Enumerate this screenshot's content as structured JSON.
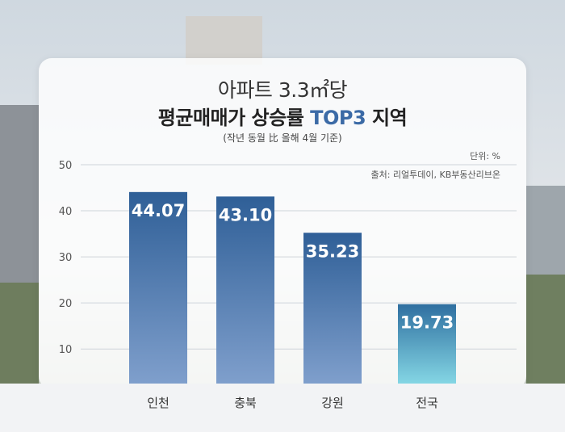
{
  "chart_data": {
    "type": "bar",
    "title": "아파트 3.3㎡당",
    "title_line2_prefix": "평균매매가 상승률 ",
    "title_line2_accent": "TOP3",
    "title_line2_suffix": " 지역",
    "subtitle": "(작년 동월 比 올해 4월 기준)",
    "unit": "단위: %",
    "source": "출처: 리얼투데이, KB부동산리브온",
    "categories": [
      "인천",
      "충북",
      "강원",
      "전국"
    ],
    "values": [
      44.07,
      43.1,
      35.23,
      19.73
    ],
    "value_labels": [
      "44.07",
      "43.10",
      "35.23",
      "19.73"
    ],
    "y_ticks": [
      "50",
      "40",
      "30",
      "20",
      "10"
    ],
    "ylim": [
      2.5,
      50
    ],
    "grid": true,
    "colors": {
      "bar_top": "#2f5f97",
      "bar_bottom": "#7f9fcc",
      "highlight_top": "#2f6fa0",
      "highlight_bottom": "#84d6e4",
      "accent": "#3b6aa6"
    }
  }
}
